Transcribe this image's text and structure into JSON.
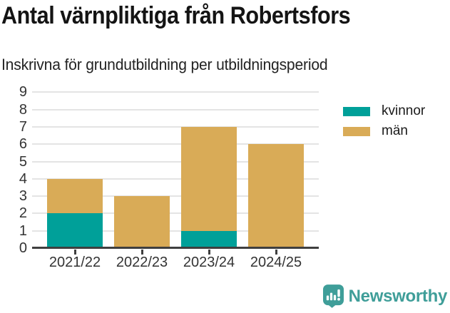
{
  "title": "Antal värnpliktiga från Robertsfors",
  "subtitle": "Inskrivna för grundutbildning per utbildningsperiod",
  "chart_data": {
    "type": "bar",
    "stacked": true,
    "title": "Antal värnpliktiga från Robertsfors",
    "subtitle": "Inskrivna för grundutbildning per utbildningsperiod",
    "categories": [
      "2021/22",
      "2022/23",
      "2023/24",
      "2024/25"
    ],
    "series": [
      {
        "name": "kvinnor",
        "color": "#00a099",
        "values": [
          2,
          0,
          1,
          0
        ]
      },
      {
        "name": "män",
        "color": "#d9ab57",
        "values": [
          2,
          3,
          6,
          6
        ]
      }
    ],
    "totals": [
      4,
      3,
      7,
      6
    ],
    "xlabel": "",
    "ylabel": "",
    "ylim": [
      0,
      9
    ],
    "y_ticks": [
      0,
      1,
      2,
      3,
      4,
      5,
      6,
      7,
      8,
      9
    ],
    "grid": true,
    "legend_position": "right"
  },
  "colors": {
    "kvinnor": "#00a099",
    "man": "#d9ab57",
    "gridline": "#e4e4e4",
    "axis": "#3f3f3f",
    "tick_text": "#333333",
    "brand": "#3f9e99"
  },
  "footer": {
    "brand": "Newsworthy",
    "logo_icon": "bar-chart-speech-bubble-icon"
  }
}
